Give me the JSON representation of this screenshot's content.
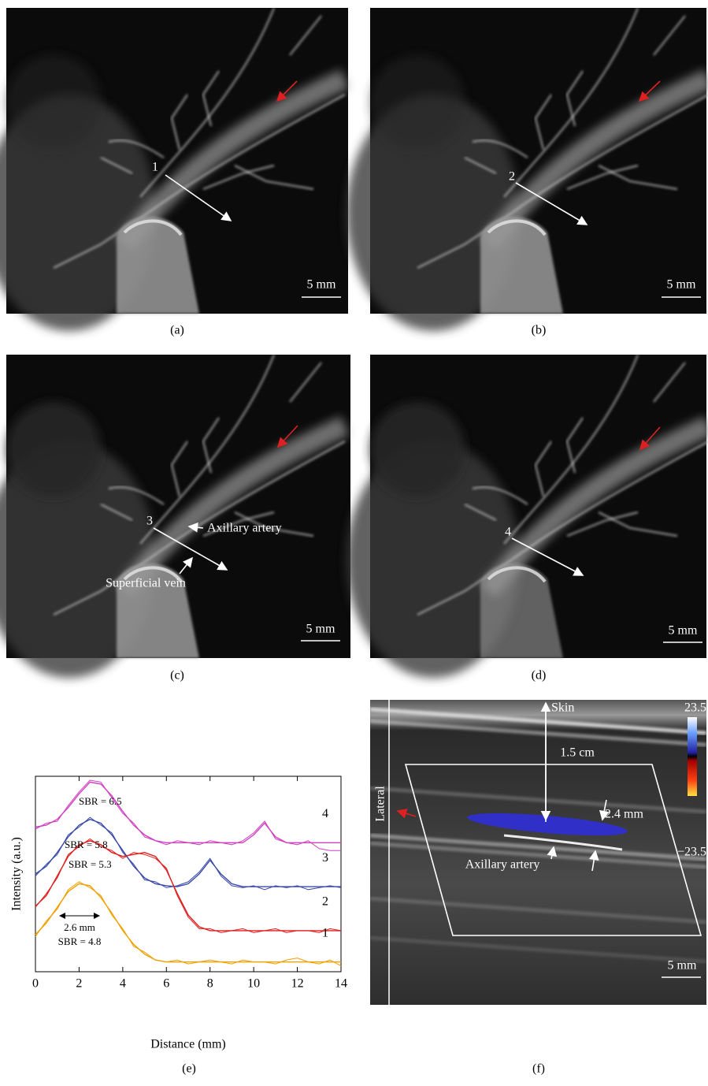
{
  "figure": {
    "panels": [
      {
        "label": "(a)",
        "number": "1",
        "scale": "5 mm"
      },
      {
        "label": "(b)",
        "number": "2",
        "scale": "5 mm"
      },
      {
        "label": "(c)",
        "number": "3",
        "scale": "5 mm",
        "annotations": [
          "Axillary artery",
          "Superficial vein"
        ]
      },
      {
        "label": "(d)",
        "number": "4",
        "scale": "5 mm"
      },
      {
        "label": "(e)"
      },
      {
        "label": "(f)",
        "skin": "Skin",
        "depth": "1.5 cm",
        "diameter": "2.4 mm",
        "vessel": "Axillary artery",
        "side": "Lateral",
        "scale": "5 mm",
        "scale_max": "23.5",
        "scale_min": "−23.5"
      }
    ]
  },
  "chart_data": {
    "type": "line",
    "x_label": "Distance (mm)",
    "y_label": "Intensity (a.u.)",
    "xlim": [
      0,
      14
    ],
    "xticks": [
      0,
      2,
      4,
      6,
      8,
      10,
      12,
      14
    ],
    "ylim": [
      0,
      10
    ],
    "annotations": [
      "SBR = 6.5",
      "SBR = 5.8",
      "SBR = 5.3",
      "2.6 mm",
      "SBR = 4.8"
    ],
    "x": [
      0,
      0.5,
      1,
      1.5,
      2,
      2.5,
      3,
      3.5,
      4,
      4.5,
      5,
      5.5,
      6,
      6.5,
      7,
      7.5,
      8,
      8.5,
      9,
      9.5,
      10,
      10.5,
      11,
      11.5,
      12,
      12.5,
      13,
      13.5,
      14
    ],
    "series": [
      {
        "name": "4",
        "color": "#d040c0",
        "values": [
          7.3,
          7.6,
          7.7,
          8.5,
          9.2,
          9.8,
          9.7,
          8.9,
          8.1,
          7.6,
          6.9,
          6.7,
          6.5,
          6.7,
          6.6,
          6.5,
          6.7,
          6.6,
          6.5,
          6.7,
          7.1,
          7.7,
          6.8,
          6.6,
          6.5,
          6.7,
          6.3,
          6.2,
          6.2
        ],
        "fit": [
          7.4,
          7.5,
          7.8,
          8.4,
          9.1,
          9.7,
          9.6,
          9.0,
          8.2,
          7.5,
          7.0,
          6.7,
          6.6,
          6.6,
          6.6,
          6.6,
          6.6,
          6.6,
          6.6,
          6.6,
          7.0,
          7.6,
          6.9,
          6.6,
          6.6,
          6.6,
          6.6,
          6.6,
          6.6
        ]
      },
      {
        "name": "3",
        "color": "#3a4aa8",
        "values": [
          4.9,
          5.5,
          6.0,
          7.0,
          7.4,
          7.9,
          7.5,
          7.1,
          6.1,
          5.5,
          4.7,
          4.6,
          4.3,
          4.4,
          4.6,
          5.1,
          5.8,
          4.9,
          4.4,
          4.3,
          4.4,
          4.2,
          4.4,
          4.3,
          4.4,
          4.2,
          4.3,
          4.4,
          4.3
        ],
        "fit": [
          5.0,
          5.4,
          6.1,
          6.9,
          7.5,
          7.8,
          7.6,
          7.0,
          6.2,
          5.4,
          4.8,
          4.5,
          4.4,
          4.35,
          4.5,
          5.0,
          5.7,
          5.0,
          4.5,
          4.35,
          4.35,
          4.35,
          4.35,
          4.35,
          4.35,
          4.35,
          4.35,
          4.35,
          4.35
        ]
      },
      {
        "name": "2",
        "color": "#e02020",
        "values": [
          3.3,
          4.0,
          4.8,
          6.0,
          6.4,
          6.8,
          6.4,
          6.2,
          5.8,
          6.1,
          6.0,
          5.8,
          5.3,
          3.9,
          2.8,
          2.2,
          2.2,
          2.0,
          2.1,
          2.2,
          2.0,
          2.1,
          2.2,
          2.0,
          2.1,
          2.1,
          2.0,
          2.2,
          2.1
        ],
        "fit": [
          3.35,
          3.9,
          4.9,
          5.9,
          6.5,
          6.7,
          6.5,
          6.1,
          5.9,
          6.0,
          6.1,
          5.9,
          5.2,
          4.0,
          2.9,
          2.3,
          2.1,
          2.1,
          2.1,
          2.1,
          2.1,
          2.1,
          2.1,
          2.1,
          2.1,
          2.1,
          2.1,
          2.1,
          2.1
        ]
      },
      {
        "name": "1",
        "color": "#f0a000",
        "values": [
          1.8,
          2.6,
          3.2,
          4.2,
          4.6,
          4.3,
          3.9,
          2.9,
          2.2,
          1.3,
          1.0,
          0.6,
          0.5,
          0.6,
          0.4,
          0.5,
          0.6,
          0.5,
          0.4,
          0.6,
          0.5,
          0.5,
          0.4,
          0.6,
          0.7,
          0.5,
          0.4,
          0.6,
          0.3
        ],
        "fit": [
          1.9,
          2.5,
          3.3,
          4.1,
          4.5,
          4.4,
          3.8,
          3.0,
          2.1,
          1.4,
          0.9,
          0.6,
          0.5,
          0.5,
          0.5,
          0.5,
          0.5,
          0.5,
          0.5,
          0.5,
          0.5,
          0.5,
          0.5,
          0.5,
          0.5,
          0.5,
          0.5,
          0.5,
          0.5
        ]
      }
    ]
  }
}
